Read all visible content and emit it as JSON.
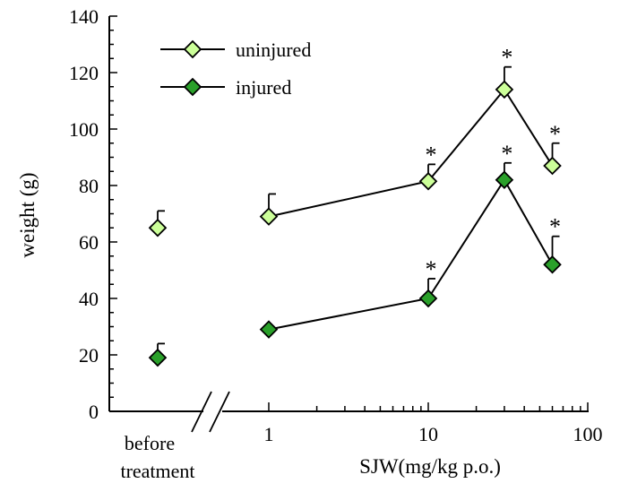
{
  "chart_data": {
    "type": "line",
    "xlabel": "SJW(mg/kg p.o.)",
    "ylabel": "weight (g)",
    "xscale": "log",
    "xlim": [
      0.5,
      100
    ],
    "ylim": [
      0,
      140
    ],
    "yticks": [
      0,
      20,
      40,
      60,
      80,
      100,
      120,
      140
    ],
    "xtick_labels": [
      "1",
      "10",
      "100"
    ],
    "baseline_label": [
      "before",
      "treatment"
    ],
    "legend_position": "top-left",
    "axis_break": true,
    "grid": false,
    "x": [
      1,
      10,
      30,
      60
    ],
    "series": [
      {
        "name": "uninjured",
        "color": "#ccff99",
        "marker": "diamond",
        "before_treatment": {
          "value": 65,
          "error": 6
        },
        "values": [
          69,
          81.5,
          114,
          87
        ],
        "errors": [
          8,
          6,
          8,
          8
        ],
        "significant": [
          false,
          true,
          true,
          true
        ]
      },
      {
        "name": "injured",
        "color": "#2aa02a",
        "marker": "diamond",
        "before_treatment": {
          "value": 19,
          "error": 5
        },
        "values": [
          29,
          40,
          82,
          52
        ],
        "errors": [
          0,
          7,
          6,
          10
        ],
        "significant": [
          false,
          true,
          true,
          true
        ]
      }
    ],
    "significance_symbol": "*"
  }
}
